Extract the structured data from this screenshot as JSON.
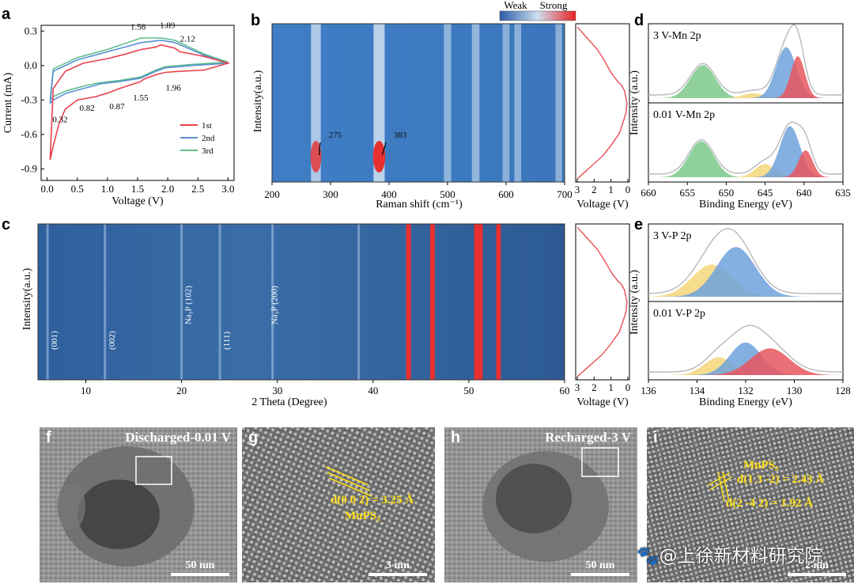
{
  "colors": {
    "red": "#e8424c",
    "blue": "#5b8fd6",
    "green": "#5fbd8b",
    "heat_low": "#1f4fa0",
    "heat_mid": "#3f86c8",
    "heat_high": "#e83030",
    "fill_green": "#7cc98a",
    "fill_blue": "#6ea2dc",
    "fill_red": "#e8565e",
    "fill_yellow": "#f4d77a",
    "label_yellow": "#ffe11c"
  },
  "chart_data": [
    {
      "panel": "a",
      "type": "line",
      "xlabel": "Voltage (V)",
      "ylabel": "Current (mA)",
      "xlim": [
        -0.1,
        3.1
      ],
      "ylim": [
        -1.0,
        0.35
      ],
      "xticks": [
        "0.0",
        "0.5",
        "1.0",
        "1.5",
        "2.0",
        "2.5",
        "3.0"
      ],
      "yticks": [
        "0.3",
        "0.0",
        "-0.3",
        "-0.6",
        "-0.9"
      ],
      "legend_position": "bottom-right",
      "series": [
        {
          "name": "1st",
          "color": "red",
          "x": [
            0.05,
            0.1,
            0.2,
            0.3,
            0.5,
            0.82,
            0.87,
            1.0,
            1.2,
            1.55,
            1.6,
            1.8,
            1.96,
            2.2,
            2.6,
            3.0,
            2.6,
            2.2,
            2.12,
            1.89,
            1.8,
            1.56,
            1.3,
            1.0,
            0.6,
            0.3,
            0.1,
            0.05
          ],
          "y": [
            -0.82,
            -0.7,
            -0.5,
            -0.38,
            -0.3,
            -0.27,
            -0.26,
            -0.24,
            -0.2,
            -0.14,
            -0.12,
            -0.08,
            -0.06,
            -0.05,
            -0.04,
            0.02,
            0.08,
            0.12,
            0.15,
            0.18,
            0.16,
            0.14,
            0.1,
            0.06,
            0.02,
            -0.05,
            -0.2,
            -0.82
          ]
        },
        {
          "name": "2nd",
          "color": "blue",
          "x": [
            0.05,
            0.1,
            0.32,
            0.6,
            0.82,
            0.87,
            1.2,
            1.55,
            1.8,
            1.96,
            2.4,
            3.0,
            2.6,
            2.12,
            1.89,
            1.56,
            1.0,
            0.5,
            0.1,
            0.05
          ],
          "y": [
            -0.33,
            -0.3,
            -0.24,
            -0.2,
            -0.17,
            -0.16,
            -0.14,
            -0.11,
            -0.05,
            -0.02,
            0.0,
            0.02,
            0.09,
            0.2,
            0.22,
            0.2,
            0.12,
            0.05,
            -0.05,
            -0.33
          ]
        },
        {
          "name": "3rd",
          "color": "green",
          "x": [
            0.05,
            0.1,
            0.32,
            0.6,
            0.87,
            1.2,
            1.55,
            1.8,
            1.96,
            2.4,
            3.0,
            2.6,
            2.12,
            1.89,
            1.56,
            1.0,
            0.5,
            0.1,
            0.05
          ],
          "y": [
            -0.3,
            -0.27,
            -0.22,
            -0.18,
            -0.15,
            -0.13,
            -0.1,
            -0.04,
            -0.01,
            0.01,
            0.03,
            0.1,
            0.22,
            0.24,
            0.24,
            0.14,
            0.07,
            -0.03,
            -0.3
          ]
        }
      ],
      "annotations": [
        "1.56",
        "1.89",
        "2.12",
        "1.96",
        "1.55",
        "0.87",
        "0.82",
        "0.32"
      ]
    },
    {
      "panel": "b",
      "type": "heatmap",
      "xlabel": "Raman shift (cm⁻¹)",
      "ylabel": "Intensity(a.u.)",
      "xlim": [
        200,
        700
      ],
      "xticks": [
        "200",
        "300",
        "400",
        "500",
        "600",
        "700"
      ],
      "colorbar": [
        "Weak",
        "Strong"
      ],
      "bands": [
        {
          "x": 275,
          "strength": 0.8
        },
        {
          "x": 383,
          "strength": 1.0
        },
        {
          "x": 500,
          "strength": 0.4
        },
        {
          "x": 548,
          "strength": 0.45
        },
        {
          "x": 600,
          "strength": 0.35
        },
        {
          "x": 620,
          "strength": 0.35
        },
        {
          "x": 690,
          "strength": 0.3
        }
      ],
      "annotations": [
        "275",
        "383"
      ]
    },
    {
      "panel": "b-side",
      "type": "line",
      "xlabel": "Voltage (V)",
      "xticks": [
        "3",
        "2",
        "1",
        "0"
      ],
      "x": [
        3.0,
        2.6,
        2.2,
        1.8,
        1.4,
        1.0,
        0.6,
        0.4,
        0.2,
        0.05,
        0.1,
        0.2,
        0.5,
        1.0,
        1.5,
        2.0,
        2.5,
        3.0
      ],
      "y": [
        0.0,
        0.05,
        0.1,
        0.15,
        0.22,
        0.3,
        0.36,
        0.38,
        0.42,
        0.5,
        0.56,
        0.6,
        0.7,
        0.78,
        0.85,
        0.9,
        0.95,
        1.0
      ]
    },
    {
      "panel": "c",
      "type": "heatmap",
      "xlabel": "2 Theta (Degree)",
      "ylabel": "Intensity(a.u.)",
      "xlim": [
        5,
        60
      ],
      "xticks": [
        "10",
        "20",
        "30",
        "40",
        "50",
        "60"
      ],
      "lines": [
        {
          "x": 6,
          "color": "light"
        },
        {
          "x": 12,
          "color": "light"
        },
        {
          "x": 20,
          "color": "light"
        },
        {
          "x": 24,
          "color": "light"
        },
        {
          "x": 29.5,
          "color": "light"
        },
        {
          "x": 38.5,
          "color": "light"
        },
        {
          "x": 43.7,
          "color": "red"
        },
        {
          "x": 46.2,
          "color": "red"
        },
        {
          "x": 50.8,
          "color": "red"
        },
        {
          "x": 51.2,
          "color": "red"
        },
        {
          "x": 53.1,
          "color": "red"
        }
      ],
      "peak_labels": [
        {
          "x": 7,
          "text": "(001)"
        },
        {
          "x": 13,
          "text": "(002)"
        },
        {
          "x": 21,
          "text": "Na₃P (102)"
        },
        {
          "x": 25,
          "text": "(111)"
        },
        {
          "x": 30,
          "text": "Na₃P (200)"
        }
      ]
    },
    {
      "panel": "c-side",
      "type": "line",
      "xlabel": "Voltage (V)",
      "xticks": [
        "3",
        "2",
        "1",
        "0"
      ],
      "x": [
        3.0,
        2.6,
        2.2,
        1.8,
        1.4,
        1.0,
        0.6,
        0.4,
        0.2,
        0.05,
        0.1,
        0.2,
        0.5,
        1.0,
        1.5,
        2.0,
        2.5,
        3.0
      ],
      "y": [
        0.0,
        0.05,
        0.1,
        0.15,
        0.22,
        0.3,
        0.36,
        0.38,
        0.42,
        0.5,
        0.56,
        0.6,
        0.7,
        0.78,
        0.85,
        0.9,
        0.95,
        1.0
      ]
    },
    {
      "panel": "d",
      "type": "area",
      "xlabel": "Binding Energy (eV)",
      "ylabel": "Intensity (a.u.)",
      "xlim": [
        660,
        635
      ],
      "xticks": [
        "660",
        "655",
        "650",
        "645",
        "640",
        "635"
      ],
      "subplots": [
        {
          "label": "3 V-Mn 2p",
          "peaks": [
            {
              "center": 653.0,
              "height": 0.55,
              "width": 1.6,
              "color": "fill_green"
            },
            {
              "center": 646.5,
              "height": 0.08,
              "width": 1.4,
              "color": "fill_yellow"
            },
            {
              "center": 642.3,
              "height": 0.85,
              "width": 1.3,
              "color": "fill_blue"
            },
            {
              "center": 640.8,
              "height": 0.7,
              "width": 0.9,
              "color": "fill_red"
            }
          ]
        },
        {
          "label": "0.01 V-Mn 2p",
          "peaks": [
            {
              "center": 653.2,
              "height": 0.6,
              "width": 1.6,
              "color": "fill_green"
            },
            {
              "center": 645.0,
              "height": 0.22,
              "width": 1.3,
              "color": "fill_yellow"
            },
            {
              "center": 641.8,
              "height": 0.85,
              "width": 1.3,
              "color": "fill_blue"
            },
            {
              "center": 639.8,
              "height": 0.45,
              "width": 0.9,
              "color": "fill_red"
            }
          ]
        }
      ]
    },
    {
      "panel": "e",
      "type": "area",
      "xlabel": "Binding Energy (eV)",
      "ylabel": "Intensity (a.u.)",
      "xlim": [
        136,
        128
      ],
      "xticks": [
        "136",
        "134",
        "132",
        "130",
        "128"
      ],
      "subplots": [
        {
          "label": "3 V-P 2p",
          "peaks": [
            {
              "center": 133.4,
              "height": 0.55,
              "width": 0.8,
              "color": "fill_yellow"
            },
            {
              "center": 132.4,
              "height": 0.85,
              "width": 0.8,
              "color": "fill_blue"
            }
          ]
        },
        {
          "label": "0.01 V-P 2p",
          "peaks": [
            {
              "center": 133.1,
              "height": 0.3,
              "width": 0.6,
              "color": "fill_yellow"
            },
            {
              "center": 132.0,
              "height": 0.55,
              "width": 0.65,
              "color": "fill_blue"
            },
            {
              "center": 131.0,
              "height": 0.45,
              "width": 0.8,
              "color": "fill_red"
            }
          ]
        }
      ]
    }
  ],
  "panels": {
    "a": "a",
    "b": "b",
    "c": "c",
    "d": "d",
    "e": "e",
    "f": "f",
    "g": "g",
    "h": "h",
    "i": "i"
  },
  "tem": {
    "f": {
      "title": "Discharged-0.01 V",
      "scale": "50 nm"
    },
    "g": {
      "scale": "3 nm",
      "d_label": "d(0 0 2) = 3.25 Å",
      "phase": "MnPS₃"
    },
    "h": {
      "title": "Recharged-3 V",
      "scale": "50 nm"
    },
    "i": {
      "phase": "MnPS₃",
      "d1": "d(1 3 -2) = 2.43 Å",
      "d2": "d(2 -4 2) = 1.92 Å",
      "scale": "2 nm"
    }
  },
  "watermark": "🐾@上徐新材料研究院"
}
